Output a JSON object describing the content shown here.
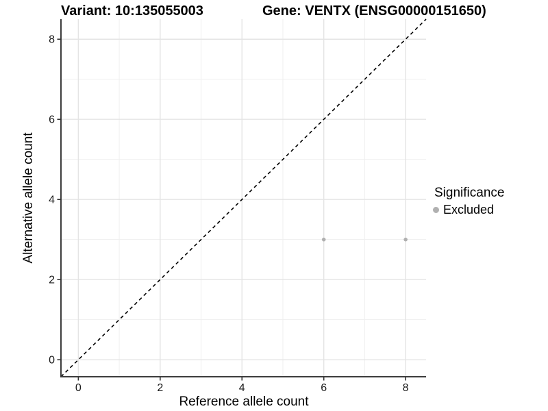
{
  "figure": {
    "title_left": "Variant: 10:135055003",
    "title_right": "Gene: VENTX (ENSG00000151650)"
  },
  "chart_data": {
    "type": "scatter",
    "title": "Variant: 10:135055003   Gene: VENTX (ENSG00000151650)",
    "xlabel": "Reference allele count",
    "ylabel": "Alternative allele count",
    "xlim": [
      -0.425,
      8.5
    ],
    "ylim": [
      -0.425,
      8.5
    ],
    "x_ticks": [
      0,
      2,
      4,
      6,
      8
    ],
    "y_ticks": [
      0,
      2,
      4,
      6,
      8
    ],
    "x_minor": [
      1,
      3,
      5,
      7
    ],
    "y_minor": [
      1,
      3,
      5,
      7
    ],
    "grid": true,
    "series": [
      {
        "name": "Excluded",
        "points": [
          {
            "x": 6,
            "y": 3
          },
          {
            "x": 8,
            "y": 3
          }
        ]
      }
    ],
    "identity_line": {
      "style": "dashed",
      "from": [
        -0.425,
        -0.425
      ],
      "to": [
        8.5,
        8.5
      ]
    },
    "legend": {
      "position": "right",
      "title": "Significance",
      "items": [
        {
          "label": "Excluded",
          "color": "#b0b0b0"
        }
      ]
    },
    "colors": {
      "point": "#b0b0b0",
      "grid_major": "#e4e4e4",
      "grid_minor": "#efefef",
      "axis_line": "#3c3c3c",
      "tick_mark": "#333333",
      "tick_text": "#1a1a1a",
      "dashed_line": "#000000",
      "background": "#ffffff"
    }
  }
}
